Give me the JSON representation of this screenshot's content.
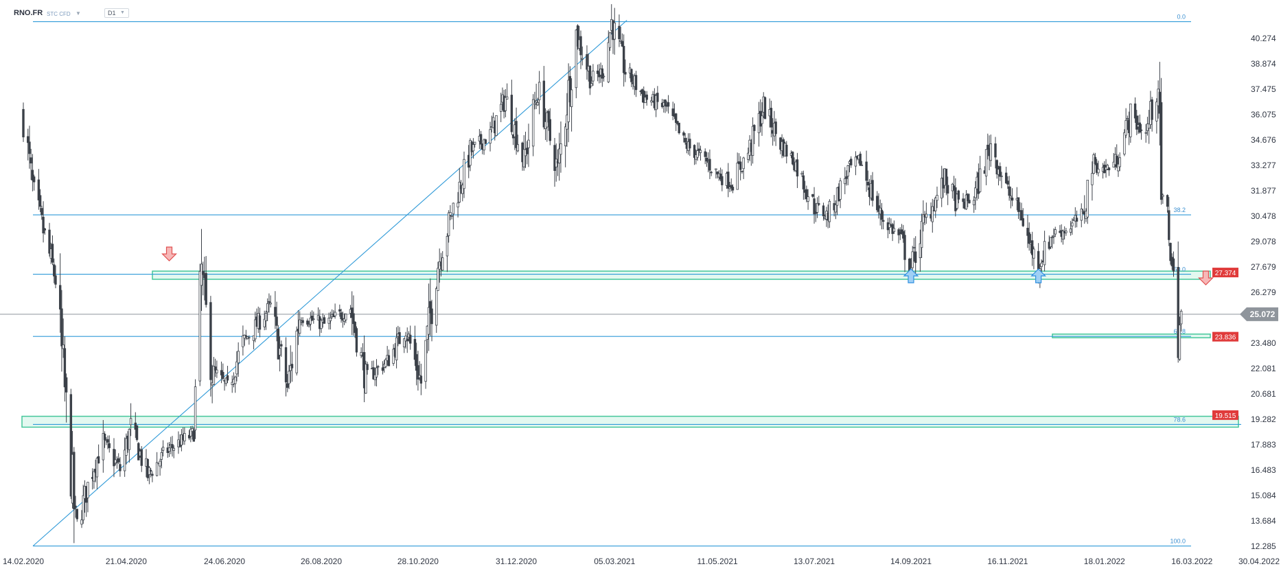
{
  "header": {
    "symbol": "RNO.FR",
    "instrument_type": "STC CFD",
    "dropdown_caret": "▼",
    "timeframe": "D1"
  },
  "chart_data": {
    "type": "candlestick",
    "symbol": "RNO.FR",
    "timeframe": "D1",
    "y_ticks": [
      40.274,
      38.874,
      37.475,
      36.075,
      34.676,
      33.277,
      31.877,
      30.478,
      29.078,
      27.679,
      26.279,
      24.88,
      23.48,
      22.081,
      20.681,
      19.282,
      17.883,
      16.483,
      15.084,
      13.684,
      12.285
    ],
    "y_tick_labels": [
      "40.274",
      "38.874",
      "37.475",
      "36.075",
      "34.676",
      "33.277",
      "31.877",
      "30.478",
      "29.078",
      "27.679",
      "26.279",
      "",
      "23.480",
      "22.081",
      "20.681",
      "19.282",
      "17.883",
      "16.483",
      "15.084",
      "13.684",
      "12.285"
    ],
    "x_ticks": [
      "14.02.2020",
      "21.04.2020",
      "24.06.2020",
      "26.08.2020",
      "28.10.2020",
      "31.12.2020",
      "05.03.2021",
      "11.05.2021",
      "13.07.2021",
      "14.09.2021",
      "16.11.2021",
      "18.01.2022",
      "16.03.2022",
      "30.04.2022"
    ],
    "ylim": [
      12.285,
      41.5
    ],
    "current_price": {
      "value": 25.072,
      "label": "25.072"
    },
    "price_tags": [
      {
        "value": 27.374,
        "label": "27.374",
        "color": "#e03b3b"
      },
      {
        "value": 23.836,
        "label": "23.836",
        "color": "#e03b3b"
      },
      {
        "value": 19.515,
        "label": "19.515",
        "color": "#e03b3b"
      }
    ],
    "fib_levels": [
      {
        "label": "0.0",
        "value": 41.2
      },
      {
        "label": "38.2",
        "value": 30.55
      },
      {
        "label": "50.0",
        "value": 27.28
      },
      {
        "label": "61.8",
        "value": 23.85
      },
      {
        "label": "78.6",
        "value": 19.0
      },
      {
        "label": "100.0",
        "value": 12.3
      }
    ],
    "zones": [
      {
        "low": 27.0,
        "high": 27.45
      },
      {
        "low": 23.78,
        "high": 23.98
      },
      {
        "low": 18.85,
        "high": 19.45
      }
    ],
    "trendline": {
      "from": {
        "date": "14.02.2020",
        "value": 12.3
      },
      "to": {
        "date": "05.03.2021",
        "value": 41.2
      }
    },
    "arrows": [
      {
        "direction": "down",
        "date": "19.05.2020",
        "color": "#e05050"
      },
      {
        "direction": "up",
        "date": "14.09.2021",
        "color": "#2f8fe0"
      },
      {
        "direction": "up",
        "date": "06.12.2021",
        "color": "#2f8fe0"
      },
      {
        "direction": "down",
        "date": "25.03.2022",
        "color": "#e05050"
      }
    ],
    "anchors": [
      [
        "14.02.2020",
        36.0
      ],
      [
        "20.02.2020",
        32.0
      ],
      [
        "06.03.2020",
        27.0
      ],
      [
        "18.03.2020",
        14.5
      ],
      [
        "20.03.2020",
        13.5
      ],
      [
        "30.03.2020",
        16.5
      ],
      [
        "06.04.2020",
        18.0
      ],
      [
        "17.04.2020",
        16.5
      ],
      [
        "24.04.2020",
        18.8
      ],
      [
        "05.05.2020",
        16.2
      ],
      [
        "18.05.2020",
        17.6
      ],
      [
        "04.06.2020",
        18.5
      ],
      [
        "09.06.2020",
        27.3
      ],
      [
        "16.06.2020",
        22.0
      ],
      [
        "26.06.2020",
        21.0
      ],
      [
        "06.07.2020",
        23.5
      ],
      [
        "24.07.2020",
        25.5
      ],
      [
        "04.08.2020",
        21.0
      ],
      [
        "12.08.2020",
        25.0
      ],
      [
        "28.08.2020",
        24.5
      ],
      [
        "14.09.2020",
        25.4
      ],
      [
        "24.09.2020",
        21.5
      ],
      [
        "08.10.2020",
        22.5
      ],
      [
        "20.10.2020",
        24.3
      ],
      [
        "30.10.2020",
        21.3
      ],
      [
        "09.11.2020",
        27.5
      ],
      [
        "20.11.2020",
        31.0
      ],
      [
        "01.12.2020",
        34.0
      ],
      [
        "14.12.2020",
        35.0
      ],
      [
        "24.12.2020",
        37.0
      ],
      [
        "05.01.2021",
        33.5
      ],
      [
        "14.01.2021",
        37.5
      ],
      [
        "27.01.2021",
        33.0
      ],
      [
        "08.02.2021",
        40.5
      ],
      [
        "18.02.2021",
        38.0
      ],
      [
        "26.02.2021",
        38.5
      ],
      [
        "03.03.2021",
        41.2
      ],
      [
        "12.03.2021",
        38.5
      ],
      [
        "25.03.2021",
        37.0
      ],
      [
        "07.04.2021",
        36.5
      ],
      [
        "19.04.2021",
        34.5
      ],
      [
        "04.05.2021",
        33.5
      ],
      [
        "11.05.2021",
        32.8
      ],
      [
        "20.05.2021",
        32.3
      ],
      [
        "31.05.2021",
        34.0
      ],
      [
        "10.06.2021",
        36.5
      ],
      [
        "21.06.2021",
        34.5
      ],
      [
        "30.06.2021",
        33.5
      ],
      [
        "13.07.2021",
        31.0
      ],
      [
        "22.07.2021",
        30.5
      ],
      [
        "04.08.2021",
        33.0
      ],
      [
        "12.08.2021",
        33.5
      ],
      [
        "25.08.2021",
        30.5
      ],
      [
        "07.09.2021",
        29.3
      ],
      [
        "14.09.2021",
        27.6
      ],
      [
        "22.09.2021",
        30.0
      ],
      [
        "06.10.2021",
        32.5
      ],
      [
        "15.10.2021",
        31.0
      ],
      [
        "25.10.2021",
        31.5
      ],
      [
        "05.11.2021",
        34.5
      ],
      [
        "15.11.2021",
        32.0
      ],
      [
        "25.11.2021",
        30.5
      ],
      [
        "30.11.2021",
        29.0
      ],
      [
        "06.12.2021",
        27.8
      ],
      [
        "15.12.2021",
        29.5
      ],
      [
        "23.12.2021",
        29.7
      ],
      [
        "04.01.2022",
        30.5
      ],
      [
        "10.01.2022",
        33.5
      ],
      [
        "18.01.2022",
        33.0
      ],
      [
        "25.01.2022",
        33.5
      ],
      [
        "04.02.2022",
        36.0
      ],
      [
        "14.02.2022",
        35.0
      ],
      [
        "22.02.2022",
        37.8
      ],
      [
        "24.02.2022",
        31.5
      ],
      [
        "28.02.2022",
        30.7
      ],
      [
        "02.03.2022",
        28.5
      ],
      [
        "07.03.2022",
        23.9
      ],
      [
        "09.03.2022",
        25.1
      ]
    ]
  }
}
